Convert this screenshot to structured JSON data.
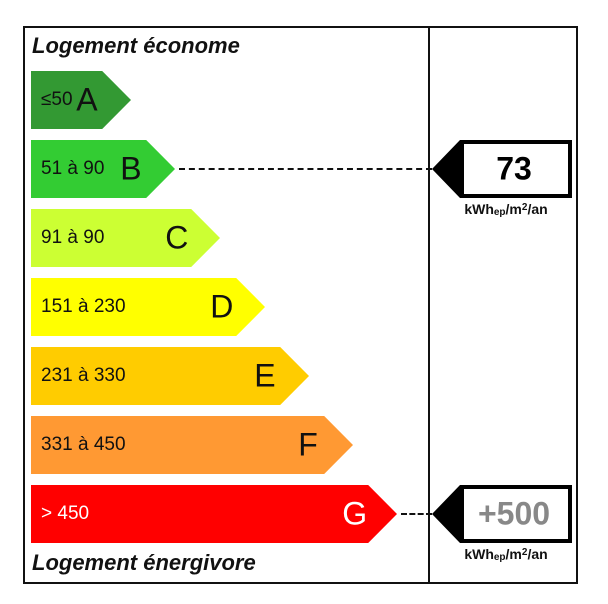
{
  "header": {
    "top_label": "Logement économe",
    "bottom_label": "Logement énergivore"
  },
  "bands": [
    {
      "letter": "A",
      "range": "≤50",
      "color": "#339933"
    },
    {
      "letter": "B",
      "range": "51 à 90",
      "color": "#33cc33"
    },
    {
      "letter": "C",
      "range": "91 à 90",
      "color": "#ccff33"
    },
    {
      "letter": "D",
      "range": "151 à 230",
      "color": "#ffff00"
    },
    {
      "letter": "E",
      "range": "231 à 330",
      "color": "#ffcc00"
    },
    {
      "letter": "F",
      "range": "331 à 450",
      "color": "#ff9933"
    },
    {
      "letter": "G",
      "range": "> 450",
      "color": "#ff0000"
    }
  ],
  "indicators": [
    {
      "value": "73",
      "class": "B",
      "value_color": "#000000",
      "unit": {
        "base": "kWh",
        "sub": "ep",
        "mid": "/m",
        "sup": "2",
        "end": "/an"
      }
    },
    {
      "value": "+500",
      "class": "G",
      "value_color": "#888888",
      "unit": {
        "base": "kWh",
        "sub": "ep",
        "mid": "/m",
        "sup": "2",
        "end": "/an"
      }
    }
  ]
}
